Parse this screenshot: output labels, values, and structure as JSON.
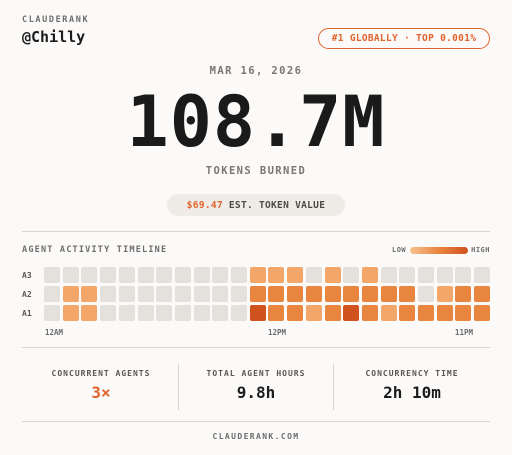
{
  "brand": "CLAUDERANK",
  "handle": "@Chilly",
  "rank_badge": "#1 GLOBALLY · TOP 0.001%",
  "date": "MAR 16, 2026",
  "tokens": {
    "value": "108.7M",
    "label": "TOKENS BURNED"
  },
  "value_pill": {
    "amount": "$69.47",
    "label": "EST. TOKEN VALUE"
  },
  "timeline": {
    "title": "AGENT ACTIVITY TIMELINE",
    "legend_low": "LOW",
    "legend_high": "HIGH",
    "rows": [
      "A3",
      "A2",
      "A1"
    ],
    "ticks": [
      "12AM",
      "12PM",
      "11PM"
    ],
    "levels": [
      [
        0,
        0,
        0,
        0,
        0,
        0,
        0,
        0,
        0,
        0,
        0,
        2,
        2,
        2,
        0,
        2,
        0,
        2,
        0,
        0,
        0,
        0,
        0,
        0
      ],
      [
        0,
        2,
        2,
        0,
        0,
        0,
        0,
        0,
        0,
        0,
        0,
        3,
        3,
        3,
        3,
        3,
        3,
        3,
        3,
        3,
        0,
        2,
        3,
        3
      ],
      [
        0,
        2,
        2,
        0,
        0,
        0,
        0,
        0,
        0,
        0,
        0,
        4,
        3,
        3,
        2,
        3,
        4,
        3,
        2,
        3,
        3,
        3,
        3,
        3
      ]
    ],
    "colors": {
      "0": "#e4e1dd",
      "1": "#f6c18f",
      "2": "#f2a66a",
      "3": "#e8853f",
      "4": "#d0521f"
    }
  },
  "stats": [
    {
      "label": "CONCURRENT AGENTS",
      "value": "3×"
    },
    {
      "label": "TOTAL AGENT HOURS",
      "value": "9.8h"
    },
    {
      "label": "CONCURRENCY TIME",
      "value": "2h 10m"
    }
  ],
  "footer": "CLAUDERANK.COM",
  "accent_color": "#e2632c"
}
